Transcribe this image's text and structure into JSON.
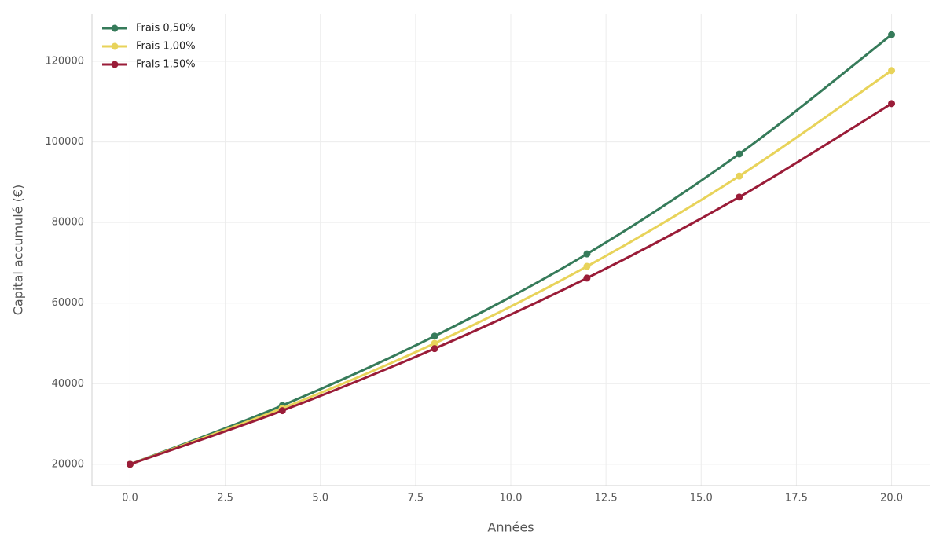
{
  "chart_data": {
    "type": "line",
    "xlabel": "Années",
    "ylabel": "Capital accumulé (€)",
    "x": [
      0,
      4,
      8,
      12,
      16,
      20
    ],
    "series": [
      {
        "name": "Frais 0,50%",
        "color": "#367b5a",
        "values": [
          20000,
          34600,
          51800,
          72200,
          97000,
          126600
        ]
      },
      {
        "name": "Frais 1,00%",
        "color": "#e8d35a",
        "values": [
          20000,
          33900,
          50000,
          69100,
          91500,
          117700
        ]
      },
      {
        "name": "Frais 1,50%",
        "color": "#9a1c38",
        "values": [
          20000,
          33300,
          48700,
          66200,
          86300,
          109500
        ]
      }
    ],
    "xlim": [
      -1,
      21
    ],
    "ylim": [
      14700,
      131700
    ],
    "xticks": [
      {
        "value": 0,
        "label": "0.0"
      },
      2.5,
      {
        "value": 5,
        "label": "5.0"
      },
      7.5,
      {
        "value": 10,
        "label": "10.0"
      },
      12.5,
      {
        "value": 15,
        "label": "15.0"
      },
      17.5,
      {
        "value": 20,
        "label": "20.0"
      }
    ],
    "yticks": [
      20000,
      40000,
      60000,
      80000,
      100000,
      120000
    ],
    "grid": true,
    "legend": "upper-left"
  }
}
